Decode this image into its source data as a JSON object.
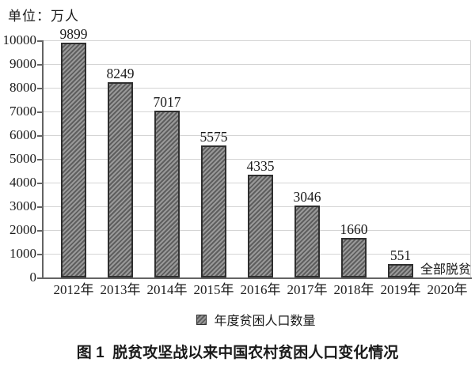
{
  "unit_label": "单位：万人",
  "caption": "图 1  脱贫攻坚战以来中国农村贫困人口变化情况",
  "chart_data": {
    "type": "bar",
    "title": "图 1 脱贫攻坚战以来中国农村贫困人口变化情况",
    "categories": [
      "2012年",
      "2013年",
      "2014年",
      "2015年",
      "2016年",
      "2017年",
      "2018年",
      "2019年",
      "2020年"
    ],
    "values": [
      9899,
      8249,
      7017,
      5575,
      4335,
      3046,
      1660,
      551,
      null
    ],
    "bar_labels": [
      "9899",
      "8249",
      "7017",
      "5575",
      "4335",
      "3046",
      "1660",
      "551",
      ""
    ],
    "annotation": {
      "text": "全部脱贫",
      "at_category": "2020年"
    },
    "legend": [
      "年度贫困人口数量"
    ],
    "legend_position": "bottom",
    "xlabel": "",
    "ylabel": "万人",
    "ylim": [
      0,
      10000
    ],
    "ytick_step": 1000,
    "yticks": [
      "0",
      "1000",
      "2000",
      "3000",
      "4000",
      "5000",
      "6000",
      "7000",
      "8000",
      "9000",
      "10000"
    ],
    "grid": true
  },
  "colors": {
    "bar_fill_light": "#999999",
    "bar_fill_dark": "#5e5e5e",
    "bar_border": "#2f2f2f",
    "gridline": "#d4d4d4",
    "axis": "#646464",
    "text": "#1a1a1a",
    "background": "#ffffff"
  }
}
